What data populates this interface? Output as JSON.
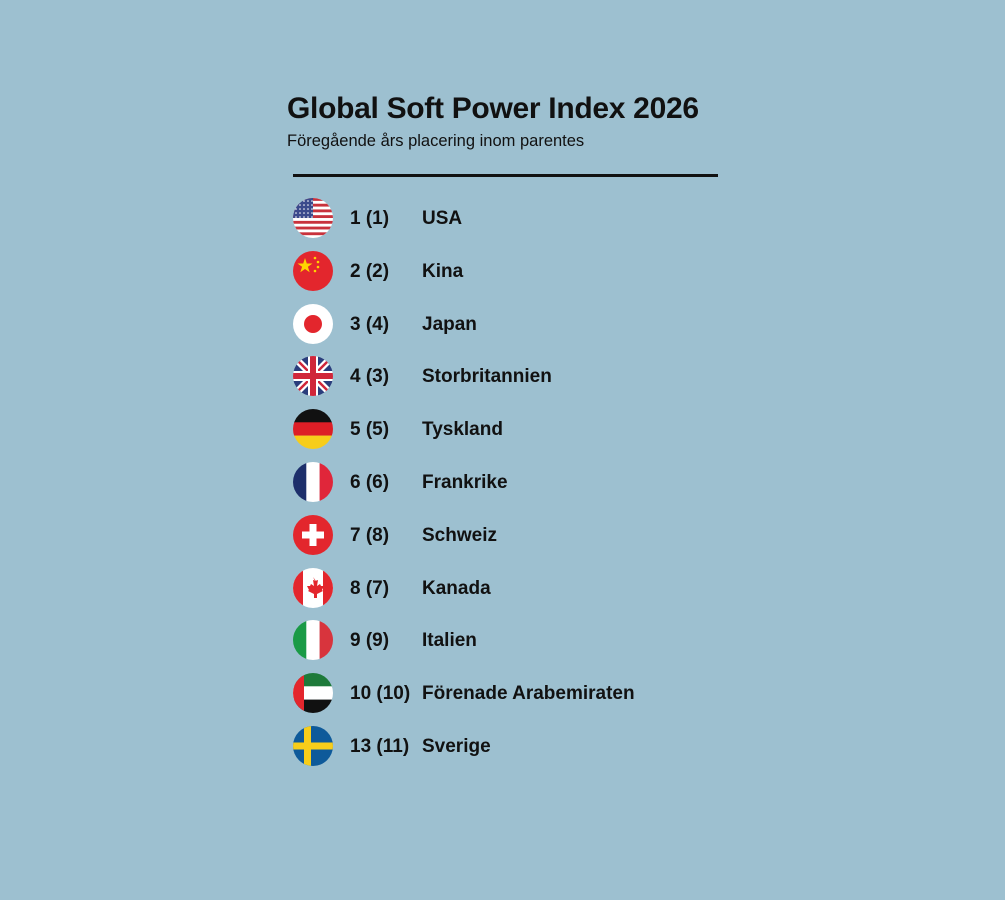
{
  "title": "Global Soft Power Index 2026",
  "subtitle": "Föregående års placering inom parentes",
  "rows": [
    {
      "rank": "1 (1)",
      "name": "USA",
      "flag": "us-flag-icon"
    },
    {
      "rank": "2 (2)",
      "name": "Kina",
      "flag": "cn-flag-icon"
    },
    {
      "rank": "3 (4)",
      "name": "Japan",
      "flag": "jp-flag-icon"
    },
    {
      "rank": "4 (3)",
      "name": "Storbritannien",
      "flag": "gb-flag-icon"
    },
    {
      "rank": "5 (5)",
      "name": "Tyskland",
      "flag": "de-flag-icon"
    },
    {
      "rank": "6 (6)",
      "name": "Frankrike",
      "flag": "fr-flag-icon"
    },
    {
      "rank": "7 (8)",
      "name": "Schweiz",
      "flag": "ch-flag-icon"
    },
    {
      "rank": "8 (7)",
      "name": "Kanada",
      "flag": "ca-flag-icon"
    },
    {
      "rank": "9 (9)",
      "name": "Italien",
      "flag": "it-flag-icon"
    },
    {
      "rank": "10 (10)",
      "name": "Förenade Arabemiraten",
      "flag": "ae-flag-icon"
    },
    {
      "rank": "13 (11)",
      "name": "Sverige",
      "flag": "se-flag-icon"
    }
  ]
}
